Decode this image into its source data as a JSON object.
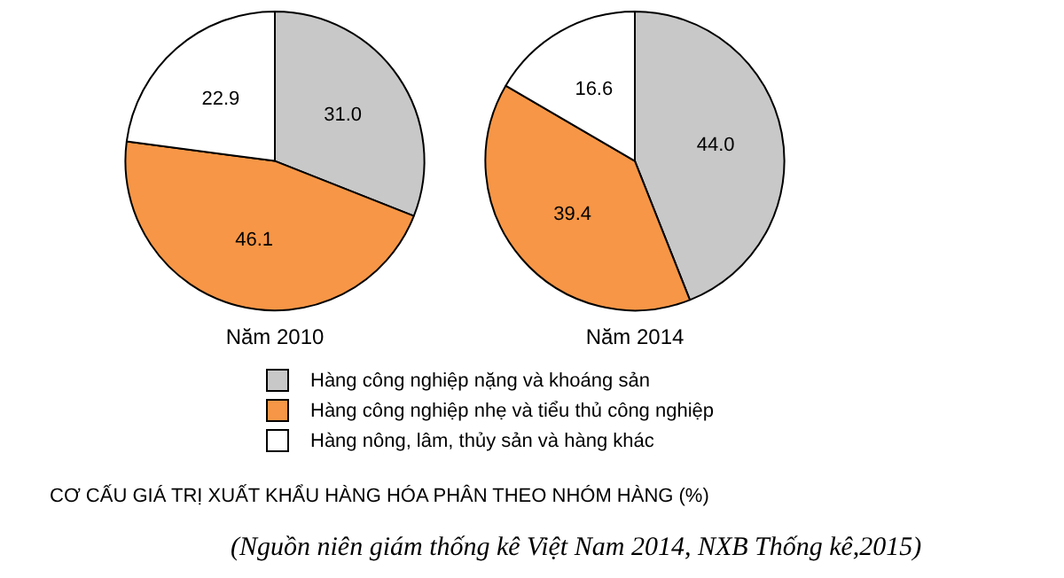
{
  "chart_data": [
    {
      "type": "pie",
      "title": "Năm 2010",
      "categories": [
        "Hàng công nghiệp nặng và khoáng sản",
        "Hàng công nghiệp nhẹ và tiểu thủ công nghiệp",
        "Hàng nông, lâm, thủy sản và hàng khác"
      ],
      "values": [
        31.0,
        46.1,
        22.9
      ],
      "value_labels": [
        "31.0",
        "46.1",
        "22.9"
      ],
      "colors": [
        "#c8c8c8",
        "#f79646",
        "#ffffff"
      ],
      "legend": "bottom",
      "annotations": [
        "CƠ CẤU GIÁ TRỊ XUẤT KHẨU HÀNG HÓA PHÂN THEO NHÓM HÀNG (%)",
        "(Nguồn niên giám thống kê Việt Nam 2014, NXB Thống kê,2015)"
      ]
    },
    {
      "type": "pie",
      "title": "Năm 2014",
      "categories": [
        null,
        null,
        null
      ],
      "values": [
        44.0,
        39.4,
        16.6
      ],
      "value_labels": [
        "44.0",
        "39.4",
        "16.6"
      ],
      "colors": [
        "#c8c8c8",
        "#f79646",
        "#ffffff"
      ]
    }
  ]
}
